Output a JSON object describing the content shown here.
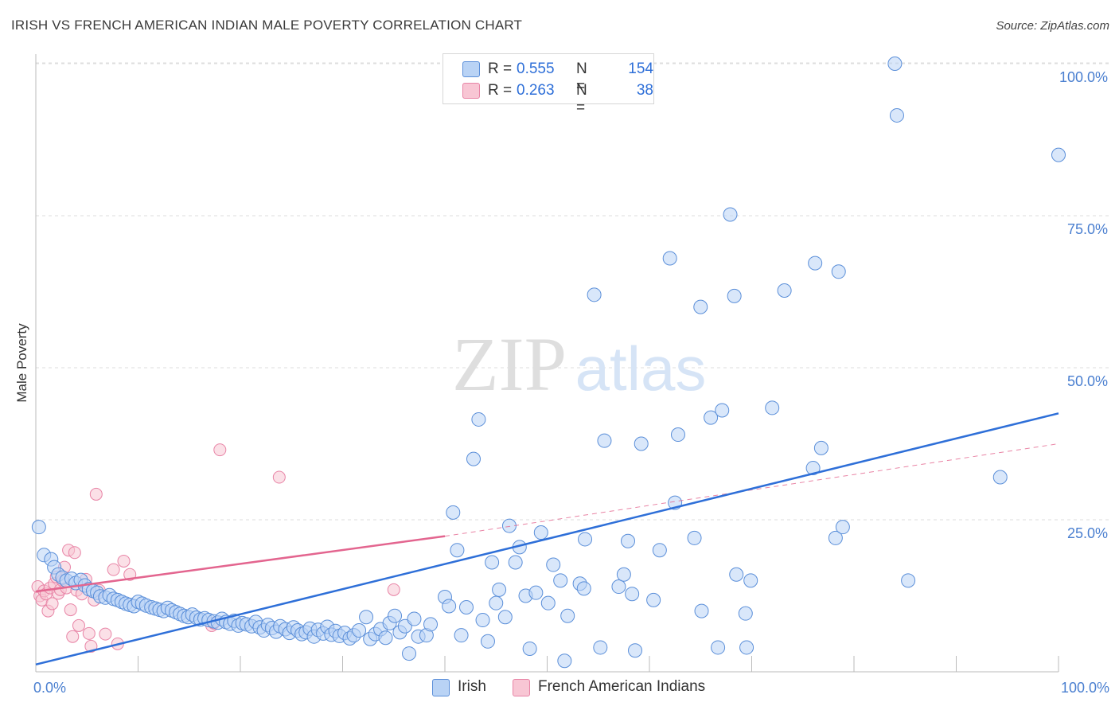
{
  "chart_title": "IRISH VS FRENCH AMERICAN INDIAN MALE POVERTY CORRELATION CHART",
  "source": "Source: ZipAtlas.com",
  "watermark": {
    "zip": "ZIP",
    "atlas": "atlas"
  },
  "legend": {
    "rows": [
      {
        "r_label": "R =",
        "r_value": "0.555",
        "n_label": "N =",
        "n_value": "154"
      },
      {
        "r_label": "R =",
        "r_value": "0.263",
        "n_label": "N =",
        "n_value": "38"
      }
    ]
  },
  "bottom_legend": {
    "irish": "Irish",
    "french": "French American Indians"
  },
  "colors": {
    "irish_fill": "#b9d3f5",
    "irish_stroke": "#5b8fd9",
    "irish_line": "#2e6fd8",
    "french_fill": "#f8c6d4",
    "french_stroke": "#e884a6",
    "french_line": "#e3658f",
    "grid": "#dddddd",
    "tick_text": "#4a7fd0"
  },
  "chart_data": {
    "type": "scatter",
    "title": "IRISH VS FRENCH AMERICAN INDIAN MALE POVERTY CORRELATION CHART",
    "xlabel": "",
    "ylabel": "Male Poverty",
    "xlim": [
      0,
      100
    ],
    "ylim": [
      0,
      100
    ],
    "x_tick_labels": [
      "0.0%",
      "100.0%"
    ],
    "y_tick_labels": [
      "25.0%",
      "50.0%",
      "75.0%",
      "100.0%"
    ],
    "y_tick_values": [
      25,
      50,
      75,
      100
    ],
    "series": [
      {
        "name": "Irish",
        "R": 0.555,
        "N": 154,
        "trend": {
          "x": [
            0,
            100
          ],
          "y": [
            1.2,
            42.5
          ]
        },
        "points": [
          [
            0.3,
            23.8
          ],
          [
            0.8,
            19.2
          ],
          [
            1.5,
            18.5
          ],
          [
            1.8,
            17.2
          ],
          [
            2.2,
            16.0
          ],
          [
            2.6,
            15.5
          ],
          [
            3.0,
            15.0
          ],
          [
            3.5,
            15.3
          ],
          [
            3.9,
            14.6
          ],
          [
            4.4,
            15.1
          ],
          [
            4.8,
            14.2
          ],
          [
            5.2,
            13.6
          ],
          [
            5.6,
            13.3
          ],
          [
            6.0,
            13.0
          ],
          [
            6.3,
            12.4
          ],
          [
            6.8,
            12.2
          ],
          [
            7.2,
            12.6
          ],
          [
            7.6,
            12.0
          ],
          [
            8.0,
            11.8
          ],
          [
            8.4,
            11.5
          ],
          [
            8.8,
            11.2
          ],
          [
            9.2,
            11.0
          ],
          [
            9.6,
            10.8
          ],
          [
            10.0,
            11.5
          ],
          [
            10.4,
            11.2
          ],
          [
            10.8,
            10.9
          ],
          [
            11.3,
            10.6
          ],
          [
            11.7,
            10.4
          ],
          [
            12.1,
            10.2
          ],
          [
            12.5,
            10.0
          ],
          [
            12.9,
            10.5
          ],
          [
            13.3,
            10.1
          ],
          [
            13.7,
            9.8
          ],
          [
            14.1,
            9.5
          ],
          [
            14.5,
            9.2
          ],
          [
            14.9,
            9.0
          ],
          [
            15.3,
            9.4
          ],
          [
            15.7,
            8.9
          ],
          [
            16.1,
            8.6
          ],
          [
            16.5,
            8.8
          ],
          [
            16.9,
            8.5
          ],
          [
            17.4,
            8.3
          ],
          [
            17.8,
            8.1
          ],
          [
            18.2,
            8.7
          ],
          [
            18.6,
            8.2
          ],
          [
            19.0,
            7.9
          ],
          [
            19.4,
            8.4
          ],
          [
            19.8,
            7.6
          ],
          [
            20.2,
            8.0
          ],
          [
            20.6,
            7.8
          ],
          [
            21.1,
            7.5
          ],
          [
            21.5,
            8.2
          ],
          [
            21.9,
            7.3
          ],
          [
            22.3,
            6.8
          ],
          [
            22.7,
            7.7
          ],
          [
            23.1,
            7.2
          ],
          [
            23.5,
            6.6
          ],
          [
            23.9,
            7.5
          ],
          [
            24.4,
            7.0
          ],
          [
            24.8,
            6.4
          ],
          [
            25.2,
            7.3
          ],
          [
            25.6,
            6.8
          ],
          [
            26.0,
            6.2
          ],
          [
            26.4,
            6.5
          ],
          [
            26.8,
            7.1
          ],
          [
            27.2,
            5.8
          ],
          [
            27.6,
            6.9
          ],
          [
            28.1,
            6.3
          ],
          [
            28.5,
            7.4
          ],
          [
            28.9,
            6.1
          ],
          [
            29.3,
            6.7
          ],
          [
            29.7,
            5.9
          ],
          [
            30.2,
            6.4
          ],
          [
            30.7,
            5.5
          ],
          [
            31.1,
            6.0
          ],
          [
            31.6,
            6.8
          ],
          [
            32.3,
            9.0
          ],
          [
            32.7,
            5.4
          ],
          [
            33.2,
            6.2
          ],
          [
            33.7,
            7.0
          ],
          [
            34.2,
            5.6
          ],
          [
            34.6,
            8.0
          ],
          [
            35.1,
            9.2
          ],
          [
            35.6,
            6.5
          ],
          [
            36.1,
            7.5
          ],
          [
            36.5,
            3.0
          ],
          [
            37.0,
            8.7
          ],
          [
            37.4,
            5.8
          ],
          [
            38.2,
            6.0
          ],
          [
            38.6,
            7.8
          ],
          [
            40.0,
            12.3
          ],
          [
            40.4,
            10.8
          ],
          [
            40.8,
            26.2
          ],
          [
            41.2,
            20.0
          ],
          [
            41.6,
            6.0
          ],
          [
            42.1,
            10.6
          ],
          [
            42.8,
            35.0
          ],
          [
            43.3,
            41.5
          ],
          [
            43.7,
            8.5
          ],
          [
            44.2,
            5.0
          ],
          [
            44.6,
            18.0
          ],
          [
            45.0,
            11.3
          ],
          [
            45.3,
            13.5
          ],
          [
            45.9,
            9.0
          ],
          [
            46.3,
            24.0
          ],
          [
            46.9,
            18.0
          ],
          [
            47.3,
            20.5
          ],
          [
            47.9,
            12.5
          ],
          [
            48.3,
            3.8
          ],
          [
            48.9,
            13.0
          ],
          [
            49.4,
            22.9
          ],
          [
            50.1,
            11.3
          ],
          [
            50.6,
            17.6
          ],
          [
            51.3,
            15.0
          ],
          [
            51.7,
            1.8
          ],
          [
            52.0,
            9.2
          ],
          [
            53.2,
            14.5
          ],
          [
            53.7,
            21.8
          ],
          [
            53.6,
            13.7
          ],
          [
            54.6,
            62.0
          ],
          [
            55.2,
            4.0
          ],
          [
            55.6,
            38.0
          ],
          [
            57.0,
            14.0
          ],
          [
            57.5,
            16.0
          ],
          [
            57.9,
            21.5
          ],
          [
            58.3,
            12.8
          ],
          [
            58.6,
            3.5
          ],
          [
            59.2,
            37.5
          ],
          [
            60.4,
            11.8
          ],
          [
            61.0,
            20.0
          ],
          [
            62.0,
            68.0
          ],
          [
            62.5,
            27.8
          ],
          [
            62.8,
            39.0
          ],
          [
            64.4,
            22.0
          ],
          [
            65.0,
            60.0
          ],
          [
            65.1,
            10.0
          ],
          [
            66.0,
            41.8
          ],
          [
            66.7,
            4.0
          ],
          [
            67.1,
            43.0
          ],
          [
            67.9,
            75.2
          ],
          [
            68.3,
            61.8
          ],
          [
            68.5,
            16.0
          ],
          [
            69.5,
            4.0
          ],
          [
            69.4,
            9.6
          ],
          [
            69.9,
            15.0
          ],
          [
            72.0,
            43.4
          ],
          [
            73.2,
            62.7
          ],
          [
            76.0,
            33.5
          ],
          [
            76.2,
            67.2
          ],
          [
            76.8,
            36.8
          ],
          [
            78.2,
            22.0
          ],
          [
            78.9,
            23.8
          ],
          [
            78.5,
            65.8
          ],
          [
            84.0,
            100.0
          ],
          [
            84.2,
            91.5
          ],
          [
            85.3,
            15.0
          ],
          [
            100.0,
            85.0
          ],
          [
            94.3,
            32.0
          ]
        ]
      },
      {
        "name": "French American Indians",
        "R": 0.263,
        "N": 38,
        "trend": {
          "x": [
            0,
            40
          ],
          "y": [
            13.2,
            22.3
          ]
        },
        "trend_extended": {
          "x": [
            40,
            100
          ],
          "y": [
            22.3,
            37.5
          ]
        },
        "points": [
          [
            0.2,
            14.0
          ],
          [
            0.4,
            12.5
          ],
          [
            0.6,
            11.8
          ],
          [
            0.8,
            13.3
          ],
          [
            1.0,
            12.8
          ],
          [
            1.2,
            10.0
          ],
          [
            1.4,
            13.8
          ],
          [
            1.6,
            11.2
          ],
          [
            1.8,
            14.5
          ],
          [
            2.0,
            15.6
          ],
          [
            2.2,
            12.9
          ],
          [
            2.4,
            13.5
          ],
          [
            2.6,
            15.0
          ],
          [
            2.8,
            17.2
          ],
          [
            3.0,
            13.8
          ],
          [
            3.2,
            20.0
          ],
          [
            3.4,
            10.2
          ],
          [
            3.6,
            5.8
          ],
          [
            3.8,
            19.6
          ],
          [
            4.0,
            13.4
          ],
          [
            4.2,
            7.6
          ],
          [
            4.5,
            12.8
          ],
          [
            4.9,
            15.2
          ],
          [
            5.2,
            6.3
          ],
          [
            5.4,
            4.2
          ],
          [
            5.7,
            11.8
          ],
          [
            5.9,
            29.2
          ],
          [
            6.2,
            13.4
          ],
          [
            6.8,
            6.2
          ],
          [
            7.6,
            16.8
          ],
          [
            8.0,
            4.6
          ],
          [
            8.6,
            18.2
          ],
          [
            9.2,
            16.0
          ],
          [
            17.2,
            7.6
          ],
          [
            17.4,
            8.0
          ],
          [
            18.0,
            36.5
          ],
          [
            23.8,
            32.0
          ],
          [
            35.0,
            13.5
          ]
        ]
      }
    ]
  }
}
